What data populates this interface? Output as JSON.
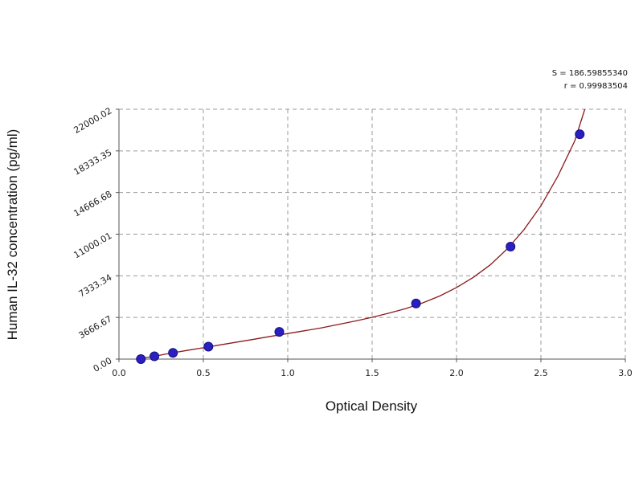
{
  "chart_data": {
    "type": "scatter",
    "xlabel": "Optical Density",
    "ylabel": "Human IL-32 concentration (pg/ml)",
    "xlim": [
      0.0,
      3.0
    ],
    "ylim": [
      0.0,
      22000.02
    ],
    "x_ticks": [
      "0.0",
      "0.5",
      "1.0",
      "1.5",
      "2.0",
      "2.5",
      "3.0"
    ],
    "y_ticks": [
      "0.00",
      "3666.67",
      "7333.34",
      "11000.01",
      "14666.68",
      "18333.35",
      "22000.02"
    ],
    "grid": true,
    "stats": [
      "S = 186.59855340",
      "r = 0.99983504"
    ],
    "points": [
      {
        "x": 0.13,
        "y": 0
      },
      {
        "x": 0.21,
        "y": 250
      },
      {
        "x": 0.32,
        "y": 550
      },
      {
        "x": 0.53,
        "y": 1100
      },
      {
        "x": 0.95,
        "y": 2400
      },
      {
        "x": 1.76,
        "y": 4900
      },
      {
        "x": 2.32,
        "y": 9900
      },
      {
        "x": 2.73,
        "y": 19800
      }
    ],
    "curve": {
      "x": [
        0.1,
        0.2,
        0.3,
        0.4,
        0.5,
        0.6,
        0.7,
        0.8,
        0.9,
        1.0,
        1.1,
        1.2,
        1.3,
        1.4,
        1.5,
        1.6,
        1.7,
        1.8,
        1.9,
        2.0,
        2.1,
        2.2,
        2.3,
        2.4,
        2.5,
        2.6,
        2.7,
        2.76
      ],
      "y": [
        0,
        220,
        500,
        760,
        1000,
        1250,
        1500,
        1750,
        2000,
        2250,
        2500,
        2750,
        3050,
        3350,
        3680,
        4050,
        4450,
        4950,
        5550,
        6300,
        7200,
        8300,
        9700,
        11400,
        13500,
        16100,
        19200,
        22000
      ]
    },
    "colors": {
      "point": "#2a1fc0",
      "curve": "#8b1a1a",
      "grid": "#9a9a9a",
      "axis": "#555555"
    }
  }
}
